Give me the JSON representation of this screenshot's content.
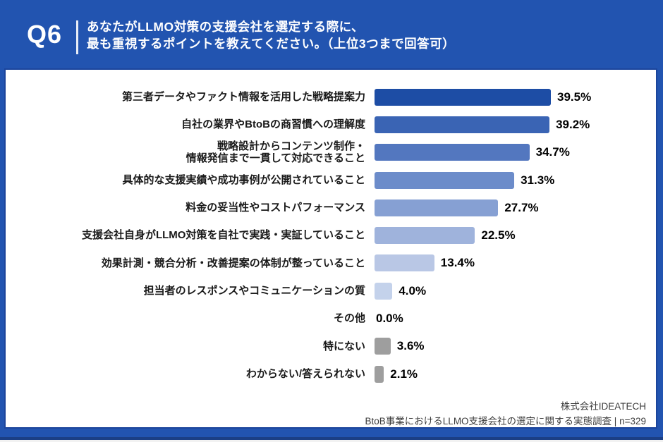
{
  "header": {
    "question_number": "Q6",
    "title_line1": "あなたがLLMO対策の支援会社を選定する際に、",
    "title_line2": "最も重視するポイントを教えてください。（上位3つまで回答可）"
  },
  "footer": {
    "company": "株式会社IDEATECH",
    "survey": "BtoB事業におけるLLMO支援会社の選定に関する実態調査 | n=329"
  },
  "colors": {
    "background_blue": "#2254b0",
    "card_border": "#1c459c",
    "gray_bar": "#9e9e9e",
    "bar_colors": [
      "#1d4da5",
      "#3a64b4",
      "#5377bf",
      "#6c8cca",
      "#86a0d3",
      "#9fb3dc",
      "#b9c7e5",
      "#c4d2eb",
      "#c4d2eb",
      "#9e9e9e",
      "#9e9e9e"
    ]
  },
  "chart_data": {
    "type": "bar",
    "orientation": "horizontal",
    "unit": "%",
    "xlim": [
      0,
      42
    ],
    "grid": false,
    "legend": false,
    "categories": [
      "第三者データやファクト情報を活用した戦略提案力",
      "自社の業界やBtoBの商習慣への理解度",
      "戦略設計からコンテンツ制作・\n情報発信まで一貫して対応できること",
      "具体的な支援実績や成功事例が公開されていること",
      "料金の妥当性やコストパフォーマンス",
      "支援会社自身がLLMO対策を自社で実践・実証していること",
      "効果計測・競合分析・改善提案の体制が整っていること",
      "担当者のレスポンスやコミュニケーションの質",
      "その他",
      "特にない",
      "わからない/答えられない"
    ],
    "values": [
      39.5,
      39.2,
      34.7,
      31.3,
      27.7,
      22.5,
      13.4,
      4.0,
      0.0,
      3.6,
      2.1
    ],
    "value_labels": [
      "39.5%",
      "39.2%",
      "34.7%",
      "31.3%",
      "27.7%",
      "22.5%",
      "13.4%",
      "4.0%",
      "0.0%",
      "3.6%",
      "2.1%"
    ]
  }
}
